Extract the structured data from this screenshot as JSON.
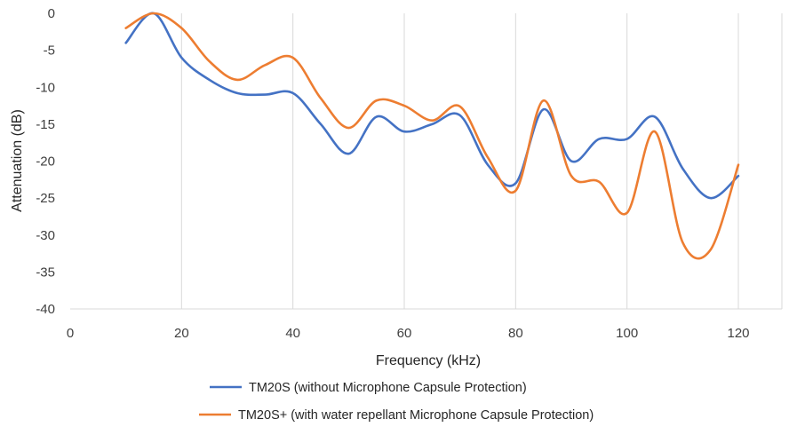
{
  "chart_data": {
    "type": "line",
    "title": "",
    "xlabel": "Frequency (kHz)",
    "ylabel": "Attenuation (dB)",
    "xlim": [
      0,
      120
    ],
    "ylim": [
      -40,
      0
    ],
    "xticks": [
      0,
      20,
      40,
      60,
      80,
      100,
      120
    ],
    "yticks": [
      0,
      -5,
      -10,
      -15,
      -20,
      -25,
      -30,
      -35,
      -40
    ],
    "grid": "vertical",
    "legend_position": "bottom",
    "series": [
      {
        "name": "TM20S (without Microphone Capsule Protection)",
        "color": "#4472C4",
        "x": [
          10,
          15,
          20,
          25,
          30,
          35,
          40,
          45,
          50,
          55,
          60,
          65,
          70,
          75,
          80,
          85,
          90,
          95,
          100,
          105,
          110,
          115,
          120
        ],
        "y": [
          -4,
          0,
          -6,
          -9,
          -10.8,
          -11,
          -10.8,
          -15,
          -19,
          -14,
          -16,
          -15,
          -13.8,
          -20.5,
          -23,
          -13,
          -20,
          -17,
          -17,
          -14,
          -21,
          -25,
          -22
        ]
      },
      {
        "name": "TM20S+ (with water repellant Microphone Capsule Protection)",
        "color": "#ED7D31",
        "x": [
          10,
          15,
          20,
          25,
          30,
          35,
          40,
          45,
          50,
          55,
          60,
          65,
          70,
          75,
          80,
          85,
          90,
          95,
          100,
          105,
          110,
          115,
          120
        ],
        "y": [
          -2,
          0,
          -2,
          -6.5,
          -9,
          -7,
          -6,
          -11.5,
          -15.5,
          -11.8,
          -12.5,
          -14.5,
          -12.6,
          -19.5,
          -24,
          -11.8,
          -22,
          -22.8,
          -27,
          -16,
          -31,
          -32,
          -20.5
        ]
      }
    ]
  }
}
